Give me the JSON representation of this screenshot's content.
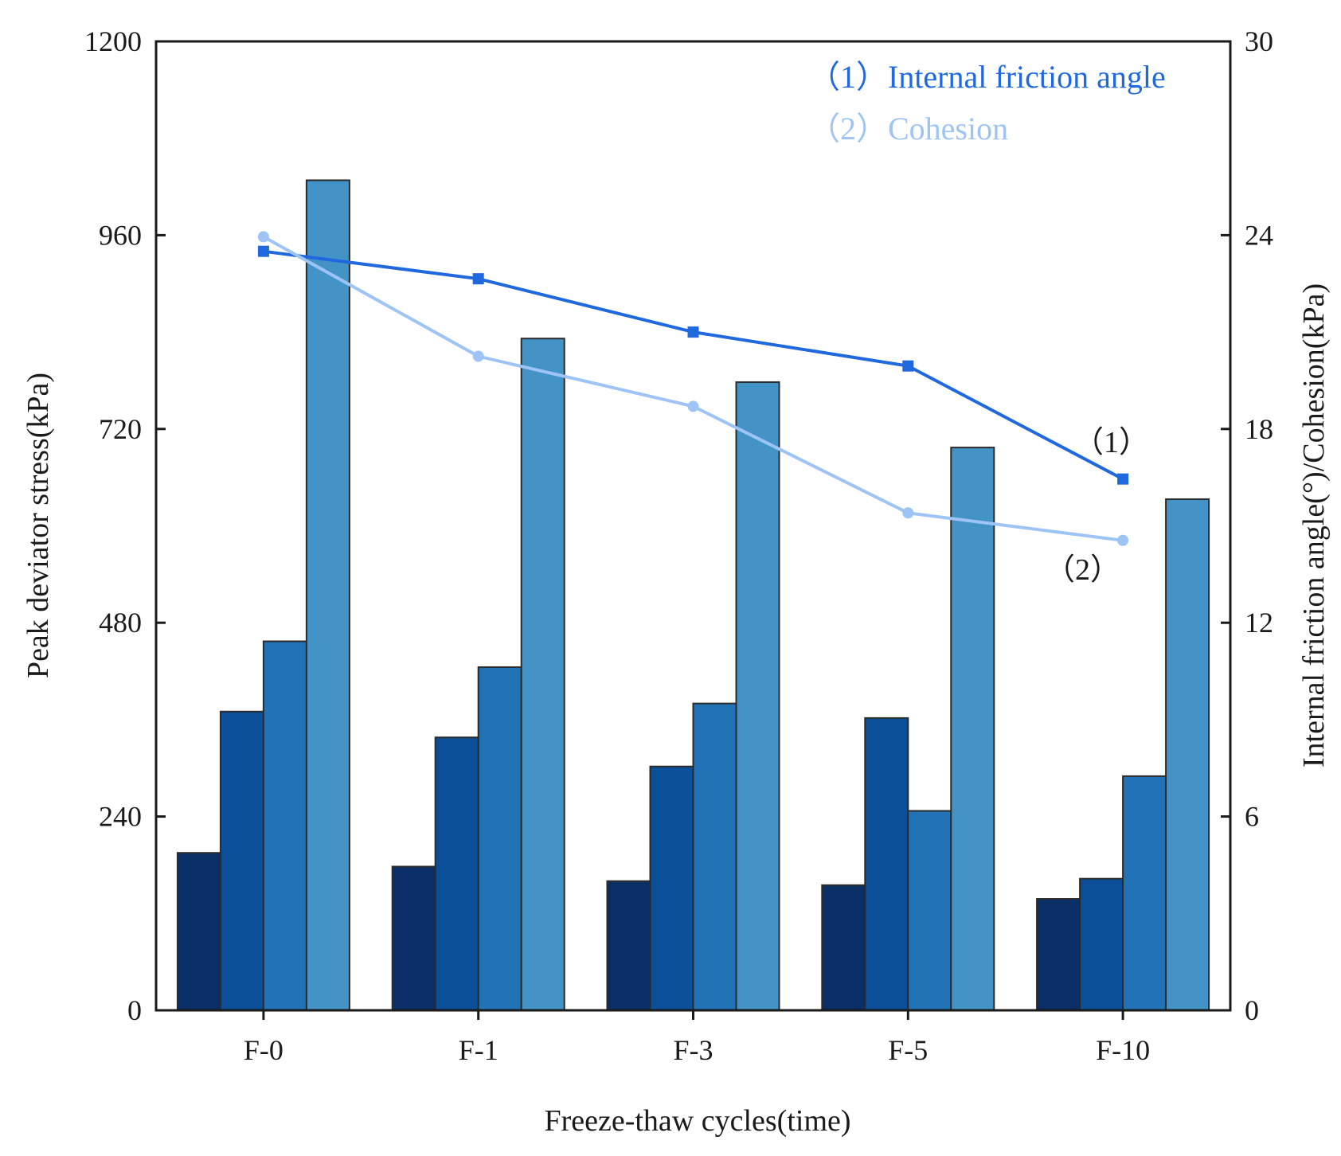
{
  "chart_data": {
    "type": "bar",
    "categories": [
      "F-0",
      "F-1",
      "F-3",
      "F-5",
      "F-10"
    ],
    "xlabel": "Freeze-thaw cycles(time)",
    "ylabel": "Peak deviator stress(kPa)",
    "y2label": "Internal friction angle(°)/Cohesion(kPa)",
    "ylim": [
      0,
      1200
    ],
    "y2lim": [
      0,
      30
    ],
    "yticks": [
      "0",
      "240",
      "480",
      "720",
      "960",
      "1200"
    ],
    "y2ticks": [
      "0",
      "6",
      "12",
      "18",
      "24",
      "30"
    ],
    "bar_colors": [
      "#0a2f66",
      "#0a4f98",
      "#2272b6",
      "#4393c6"
    ],
    "bar_series": [
      {
        "values": [
          195,
          178,
          160,
          155,
          138
        ]
      },
      {
        "values": [
          370,
          338,
          302,
          362,
          163
        ]
      },
      {
        "values": [
          457,
          425,
          380,
          247,
          290
        ]
      },
      {
        "values": [
          1028,
          832,
          778,
          697,
          633
        ]
      }
    ],
    "line_series": [
      {
        "name": "Internal friction angle",
        "legend_label": "（1）Internal friction angle",
        "marker_label": "（1）",
        "color": "#1f68dd",
        "marker": "square",
        "values": [
          23.5,
          22.65,
          21.0,
          19.95,
          16.45
        ]
      },
      {
        "name": "Cohesion",
        "legend_label": "（2）Cohesion",
        "marker_label": "（2）",
        "color": "#9ec4f6",
        "marker": "circle",
        "values": [
          23.95,
          20.25,
          18.7,
          15.4,
          14.55
        ]
      }
    ]
  }
}
